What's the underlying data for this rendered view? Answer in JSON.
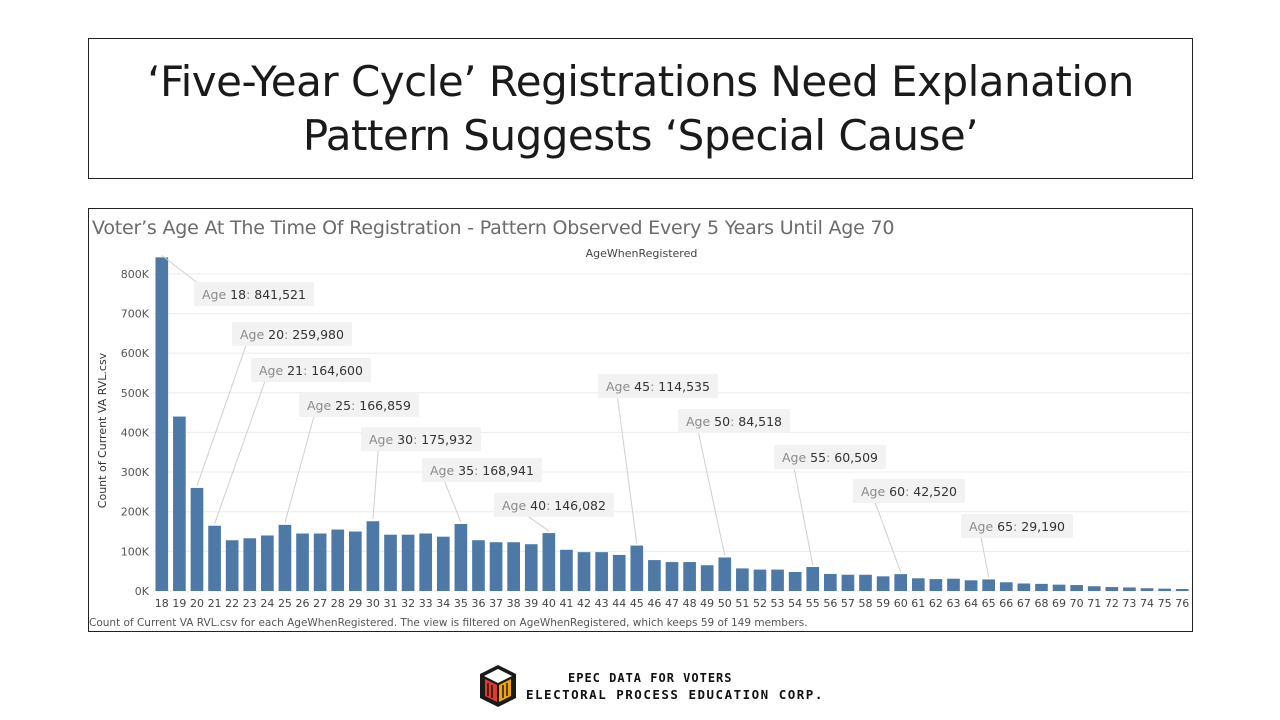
{
  "slide": {
    "title_line1": "‘Five-Year Cycle’ Registrations Need Explanation",
    "title_line2": "Pattern Suggests ‘Special Cause’"
  },
  "chart_data": {
    "type": "bar",
    "title": "Voter’s Age At The Time Of Registration - Pattern Observed Every 5 Years Until Age 70",
    "column_header": "AgeWhenRegistered",
    "xlabel": "",
    "ylabel": "Count of Current VA RVL.csv",
    "ylim": [
      0,
      850000
    ],
    "yticks": [
      0,
      100000,
      200000,
      300000,
      400000,
      500000,
      600000,
      700000,
      800000
    ],
    "ytick_labels": [
      "0K",
      "100K",
      "200K",
      "300K",
      "400K",
      "500K",
      "600K",
      "700K",
      "800K"
    ],
    "grid": true,
    "bar_color": "#4e79a7",
    "categories": [
      "18",
      "19",
      "20",
      "21",
      "22",
      "23",
      "24",
      "25",
      "26",
      "27",
      "28",
      "29",
      "30",
      "31",
      "32",
      "33",
      "34",
      "35",
      "36",
      "37",
      "38",
      "39",
      "40",
      "41",
      "42",
      "43",
      "44",
      "45",
      "46",
      "47",
      "48",
      "49",
      "50",
      "51",
      "52",
      "53",
      "54",
      "55",
      "56",
      "57",
      "58",
      "59",
      "60",
      "61",
      "62",
      "63",
      "64",
      "65",
      "66",
      "67",
      "68",
      "69",
      "70",
      "71",
      "72",
      "73",
      "74",
      "75",
      "76"
    ],
    "values": [
      841521,
      440000,
      259980,
      164600,
      128000,
      133000,
      140000,
      166859,
      145000,
      145000,
      155000,
      150000,
      175932,
      142000,
      142000,
      145000,
      137000,
      168941,
      128000,
      123000,
      123000,
      118000,
      146082,
      104000,
      98000,
      98000,
      91000,
      114535,
      78000,
      73000,
      73000,
      65000,
      84518,
      57000,
      54000,
      54000,
      48000,
      60509,
      43000,
      41000,
      41000,
      37000,
      42520,
      32000,
      30000,
      31000,
      27000,
      29190,
      22000,
      19000,
      18000,
      16000,
      15000,
      12000,
      10000,
      9000,
      7000,
      6000,
      5000
    ],
    "annotations": [
      {
        "age": "18",
        "prefix": "Age ",
        "age_label": "18",
        "sep": ":  ",
        "value_label": "841,521"
      },
      {
        "age": "20",
        "prefix": "Age ",
        "age_label": "20",
        "sep": ": ",
        "value_label": "259,980"
      },
      {
        "age": "21",
        "prefix": "Age ",
        "age_label": "21",
        "sep": ": ",
        "value_label": "164,600"
      },
      {
        "age": "25",
        "prefix": "Age ",
        "age_label": "25",
        "sep": ": ",
        "value_label": "166,859"
      },
      {
        "age": "30",
        "prefix": "Age ",
        "age_label": "30",
        "sep": ": ",
        "value_label": "175,932"
      },
      {
        "age": "35",
        "prefix": "Age ",
        "age_label": "35",
        "sep": ": ",
        "value_label": "168,941"
      },
      {
        "age": "40",
        "prefix": "Age ",
        "age_label": "40",
        "sep": ": ",
        "value_label": "146,082"
      },
      {
        "age": "45",
        "prefix": "Age ",
        "age_label": "45",
        "sep": ":  ",
        "value_label": "114,535"
      },
      {
        "age": "50",
        "prefix": "Age ",
        "age_label": "50",
        "sep": ":  ",
        "value_label": "84,518"
      },
      {
        "age": "55",
        "prefix": "Age ",
        "age_label": "55",
        "sep": ":  ",
        "value_label": "60,509"
      },
      {
        "age": "60",
        "prefix": "Age ",
        "age_label": "60",
        "sep": ":  ",
        "value_label": "42,520"
      },
      {
        "age": "65",
        "prefix": "Age ",
        "age_label": "65",
        "sep": ":  ",
        "value_label": "29,190"
      }
    ],
    "caption": "Count of Current VA RVL.csv for each AgeWhenRegistered. The view is filtered on AgeWhenRegistered, which keeps 59 of 149 members."
  },
  "footer": {
    "line1": "EPEC DATA FOR VOTERS",
    "line2": "ELECTORAL PROCESS EDUCATION CORP.",
    "logo_icon": "ballot-box-icon"
  }
}
